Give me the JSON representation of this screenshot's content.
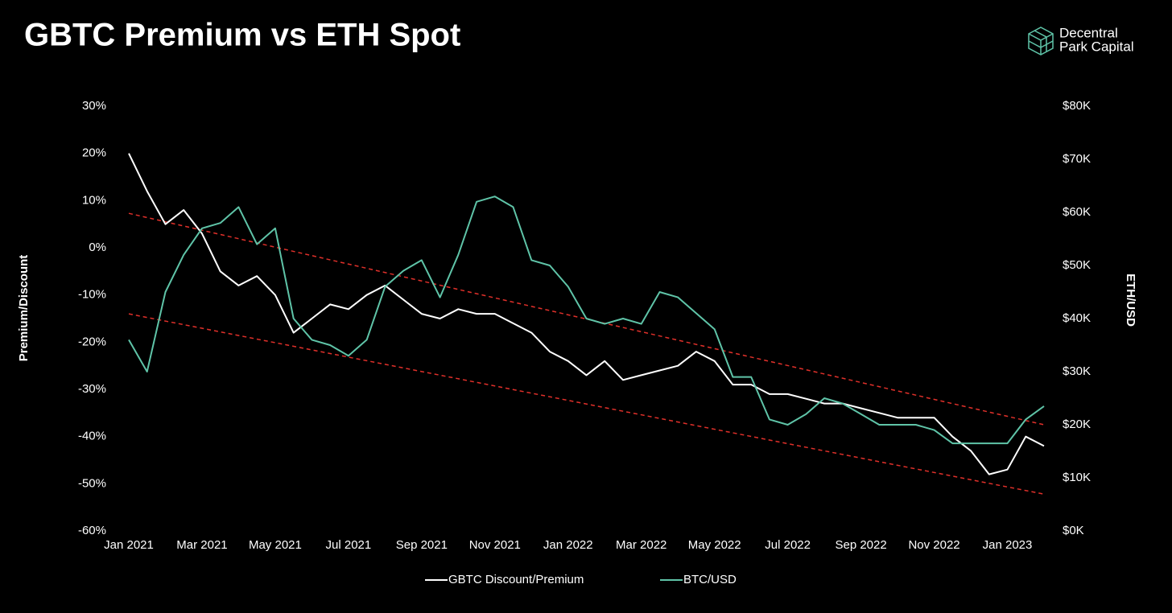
{
  "chart_data": {
    "type": "line",
    "title": "GBTC Premium vs ETH Spot",
    "brand": [
      "Decentral",
      "Park Capital"
    ],
    "ylabel": "Premium/Discount",
    "y2label": "ETH/USD",
    "categories": [
      "Jan 2021",
      null,
      null,
      null,
      "Mar 2021",
      null,
      null,
      null,
      "May 2021",
      null,
      null,
      null,
      "Jul 2021",
      null,
      null,
      null,
      "Sep 2021",
      null,
      null,
      null,
      "Nov 2021",
      null,
      null,
      null,
      "Jan 2022",
      null,
      null,
      null,
      "Mar 2022",
      null,
      null,
      null,
      "May 2022",
      null,
      null,
      null,
      "Jul 2022",
      null,
      null,
      null,
      "Sep 2022",
      null,
      null,
      null,
      "Nov 2022",
      null,
      null,
      null,
      "Jan 2023",
      null,
      null
    ],
    "ylim": [
      -60,
      30
    ],
    "yticks": [
      {
        "value": -60,
        "label": "-60%"
      },
      {
        "value": -50,
        "label": "-50%"
      },
      {
        "value": -40,
        "label": "-40%"
      },
      {
        "value": -30,
        "label": "-30%"
      },
      {
        "value": -20,
        "label": "-20%"
      },
      {
        "value": -10,
        "label": "-10%"
      },
      {
        "value": 0,
        "label": "0%"
      },
      {
        "value": 10,
        "label": "10%"
      },
      {
        "value": 20,
        "label": "20%"
      },
      {
        "value": 30,
        "label": "30%"
      }
    ],
    "y2lim": [
      0,
      80000
    ],
    "y2ticks": [
      {
        "value": 0,
        "label": "$0K"
      },
      {
        "value": 10000,
        "label": "$10K"
      },
      {
        "value": 20000,
        "label": "$20K"
      },
      {
        "value": 30000,
        "label": "$30K"
      },
      {
        "value": 40000,
        "label": "$40K"
      },
      {
        "value": 50000,
        "label": "$50K"
      },
      {
        "value": 60000,
        "label": "$60K"
      },
      {
        "value": 70000,
        "label": "$70K"
      },
      {
        "value": 80000,
        "label": "$80K"
      }
    ],
    "series": [
      {
        "name": "GBTC Discount/Premium",
        "color": "#ffffff",
        "values": [
          20,
          12,
          5,
          8,
          3,
          -5,
          -8,
          -6,
          -10,
          -18,
          -15,
          -12,
          -13,
          -10,
          -8,
          -11,
          -14,
          -15,
          -13,
          -14,
          -14,
          -16,
          -18,
          -22,
          -24,
          -27,
          -24,
          -28,
          -27,
          -26,
          -25,
          -22,
          -24,
          -29,
          -29,
          -31,
          -31,
          -32,
          -33,
          -33,
          -34,
          -35,
          -36,
          -36,
          -36,
          -40,
          -43,
          -48,
          -47,
          -40,
          -42
        ]
      },
      {
        "name": "BTC/USD",
        "color": "#5fc4a8",
        "axis": "y2",
        "values": [
          36000,
          30000,
          45000,
          52000,
          57000,
          58000,
          61000,
          54000,
          57000,
          40000,
          36000,
          35000,
          33000,
          36000,
          46000,
          49000,
          51000,
          44000,
          52000,
          62000,
          63000,
          61000,
          51000,
          50000,
          46000,
          40000,
          39000,
          40000,
          39000,
          45000,
          44000,
          41000,
          38000,
          29000,
          29000,
          21000,
          20000,
          22000,
          25000,
          24000,
          22000,
          20000,
          20000,
          20000,
          19000,
          16500,
          16500,
          16500,
          16500,
          21000,
          23500
        ]
      }
    ],
    "trend_lines": [
      {
        "color": "#e0302a",
        "values": [
          7.3,
          -37.5
        ]
      },
      {
        "color": "#e0302a",
        "values": [
          -14,
          -52.2
        ]
      }
    ]
  }
}
